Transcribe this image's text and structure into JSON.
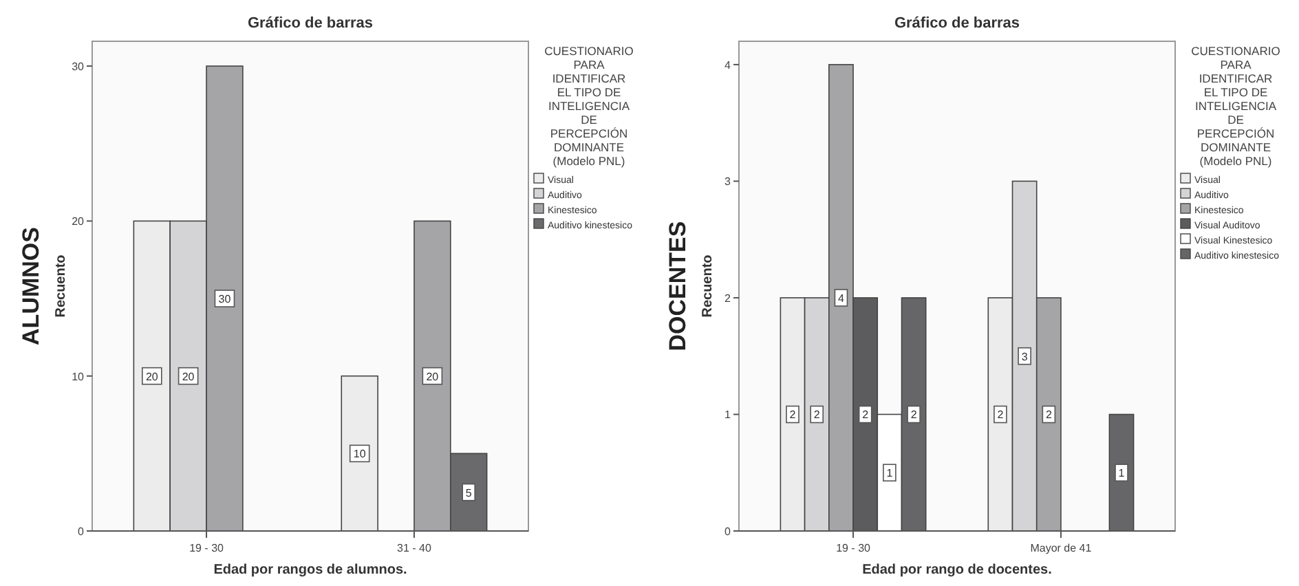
{
  "chart_data": [
    {
      "type": "bar",
      "title": "Gráfico de barras",
      "xlabel": "Edad por rangos de alumnos.",
      "ylabel": "Recuento",
      "annotations": [
        "ALUMNOS"
      ],
      "legend_title": "CUESTIONARIO PARA IDENTIFICAR EL TIPO DE INTELIGENCIA DE PERCEPCIÓN DOMINANTE (Modelo PNL)",
      "legend": "right",
      "data_labels": true,
      "categories": [
        "19 - 30",
        "31 - 40"
      ],
      "ylim": [
        0,
        31.6
      ],
      "yticks": [
        0,
        10,
        20,
        30
      ],
      "series": [
        {
          "name": "Visual",
          "color": "#ececec",
          "values": [
            20,
            10
          ]
        },
        {
          "name": "Auditivo",
          "color": "#d4d4d6",
          "values": [
            20,
            null
          ]
        },
        {
          "name": "Kinestesico",
          "color": "#a5a5a8",
          "values": [
            30,
            20
          ]
        },
        {
          "name": "Auditivo kinestesico",
          "color": "#6a6a6c",
          "values": [
            null,
            5
          ]
        }
      ]
    },
    {
      "type": "bar",
      "title": "Gráfico de barras",
      "xlabel": "Edad por rango de docentes.",
      "ylabel": "Recuento",
      "annotations": [
        "DOCENTES"
      ],
      "legend_title": "CUESTIONARIO PARA IDENTIFICAR EL TIPO DE INTELIGENCIA DE PERCEPCIÓN DOMINANTE (Modelo PNL)",
      "legend": "right",
      "data_labels": true,
      "categories": [
        "19 - 30",
        "Mayor de 41"
      ],
      "ylim": [
        0,
        4.2
      ],
      "yticks": [
        0,
        1,
        2,
        3,
        4
      ],
      "series": [
        {
          "name": "Visual",
          "color": "#ececec",
          "values": [
            2,
            2
          ]
        },
        {
          "name": "Auditivo",
          "color": "#d4d4d6",
          "values": [
            2,
            3
          ]
        },
        {
          "name": "Kinestesico",
          "color": "#a5a5a8",
          "values": [
            4,
            2
          ]
        },
        {
          "name": "Visual Auditovo",
          "color": "#5c5c5e",
          "values": [
            2,
            null
          ]
        },
        {
          "name": "Visual Kinestesico",
          "color": "#ffffff",
          "values": [
            1,
            null
          ]
        },
        {
          "name": "Auditivo kinestesico",
          "color": "#666668",
          "values": [
            2,
            1
          ]
        }
      ]
    }
  ]
}
